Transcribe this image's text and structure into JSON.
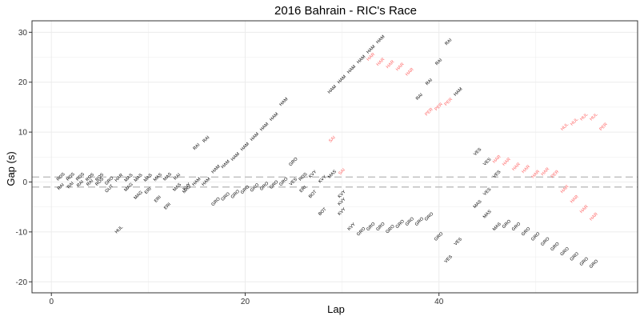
{
  "chart_data": {
    "type": "scatter",
    "title": "2016 Bahrain - RIC's Race",
    "xlabel": "Lap",
    "ylabel": "Gap (s)",
    "xlim": [
      -2,
      60.5
    ],
    "ylim": [
      -22.2,
      32.3
    ],
    "x_ticks": [
      0,
      20,
      40
    ],
    "y_ticks": [
      -20,
      -10,
      0,
      10,
      20,
      30
    ],
    "grid": true,
    "reference_lines": [
      1,
      -1
    ],
    "colors": {
      "default_label": "#000000",
      "highlight_label": "#ff6464",
      "grid": "#ececec",
      "reference_line": "#bfbfbf",
      "panel_border": "#333333"
    },
    "points": [
      {
        "x": 1,
        "y": 1.0,
        "label": "ROS"
      },
      {
        "x": 1,
        "y": -1.0,
        "label": "RAI"
      },
      {
        "x": 2,
        "y": 1.0,
        "label": "ROS"
      },
      {
        "x": 2,
        "y": -0.7,
        "label": "RAI"
      },
      {
        "x": 3,
        "y": 1.0,
        "label": "ROS"
      },
      {
        "x": 3,
        "y": -0.4,
        "label": "RAI"
      },
      {
        "x": 4,
        "y": 0.9,
        "label": "ROS"
      },
      {
        "x": 4,
        "y": -0.2,
        "label": "RAI"
      },
      {
        "x": 5,
        "y": 0.9,
        "label": "ROS"
      },
      {
        "x": 5,
        "y": 0.0,
        "label": "ROS"
      },
      {
        "x": 6,
        "y": 0.2,
        "label": "GRO"
      },
      {
        "x": 6,
        "y": -1.4,
        "label": "GUT"
      },
      {
        "x": 7,
        "y": 0.8,
        "label": "HAR"
      },
      {
        "x": 7,
        "y": -9.6,
        "label": "HUL"
      },
      {
        "x": 8,
        "y": 0.8,
        "label": "MAS"
      },
      {
        "x": 8,
        "y": -1.1,
        "label": "MAG"
      },
      {
        "x": 9,
        "y": 0.8,
        "label": "MAS"
      },
      {
        "x": 9,
        "y": -2.7,
        "label": "MAG"
      },
      {
        "x": 10,
        "y": 0.8,
        "label": "MAS"
      },
      {
        "x": 10,
        "y": -1.8,
        "label": "ERI"
      },
      {
        "x": 11,
        "y": 0.9,
        "label": "MAS"
      },
      {
        "x": 11,
        "y": -3.5,
        "label": "ERI"
      },
      {
        "x": 12,
        "y": 1.0,
        "label": "MAS"
      },
      {
        "x": 12,
        "y": -4.9,
        "label": "ERI"
      },
      {
        "x": 13,
        "y": 1.0,
        "label": "RAI"
      },
      {
        "x": 13,
        "y": -1.1,
        "label": "MAS"
      },
      {
        "x": 14,
        "y": -1.0,
        "label": "KVY"
      },
      {
        "x": 14,
        "y": -1.5,
        "label": "MAS"
      },
      {
        "x": 15,
        "y": 7.0,
        "label": "RAI"
      },
      {
        "x": 15,
        "y": 0.0,
        "label": "HAM"
      },
      {
        "x": 16,
        "y": 8.5,
        "label": "RAI"
      },
      {
        "x": 16,
        "y": 0.0,
        "label": "HAM"
      },
      {
        "x": 17,
        "y": 2.5,
        "label": "HAM"
      },
      {
        "x": 17,
        "y": -4.0,
        "label": "GRO"
      },
      {
        "x": 18,
        "y": 3.5,
        "label": "HAM"
      },
      {
        "x": 18,
        "y": -3.0,
        "label": "GRO"
      },
      {
        "x": 19,
        "y": 5.0,
        "label": "HAM"
      },
      {
        "x": 19,
        "y": -2.5,
        "label": "GRO"
      },
      {
        "x": 20,
        "y": 7.0,
        "label": "HAM"
      },
      {
        "x": 20,
        "y": -1.6,
        "label": "GRO"
      },
      {
        "x": 21,
        "y": 9.0,
        "label": "HAM"
      },
      {
        "x": 21,
        "y": -1.2,
        "label": "GRO"
      },
      {
        "x": 22,
        "y": 11.0,
        "label": "HAM"
      },
      {
        "x": 22,
        "y": -0.9,
        "label": "GRO"
      },
      {
        "x": 23,
        "y": 13.0,
        "label": "HAM"
      },
      {
        "x": 23,
        "y": -0.6,
        "label": "GRO"
      },
      {
        "x": 24,
        "y": 16.0,
        "label": "HAM"
      },
      {
        "x": 24,
        "y": 0.0,
        "label": "GRO"
      },
      {
        "x": 25,
        "y": 4.0,
        "label": "GRO"
      },
      {
        "x": 25,
        "y": 0.0,
        "label": "VES"
      },
      {
        "x": 26,
        "y": 1.0,
        "label": "ROS"
      },
      {
        "x": 26,
        "y": -1.5,
        "label": "ERI"
      },
      {
        "x": 27,
        "y": 1.5,
        "label": "KVY"
      },
      {
        "x": 27,
        "y": -2.5,
        "label": "BOT"
      },
      {
        "x": 28,
        "y": 0.5,
        "label": "KVY"
      },
      {
        "x": 28,
        "y": -6.0,
        "label": "BOT"
      },
      {
        "x": 29,
        "y": 1.5,
        "label": "MAS"
      },
      {
        "x": 29,
        "y": 18.5,
        "label": "HAM"
      },
      {
        "x": 29,
        "y": 8.5,
        "label": "SAI",
        "highlight": true
      },
      {
        "x": 30,
        "y": 20.5,
        "label": "HAM"
      },
      {
        "x": 30,
        "y": 2.0,
        "label": "SAI",
        "highlight": true
      },
      {
        "x": 30,
        "y": -2.5,
        "label": "KVY"
      },
      {
        "x": 30,
        "y": -4.0,
        "label": "KVY"
      },
      {
        "x": 30,
        "y": -6.0,
        "label": "KVY"
      },
      {
        "x": 31,
        "y": 22.5,
        "label": "HAM"
      },
      {
        "x": 31,
        "y": -9.0,
        "label": "KVY"
      },
      {
        "x": 32,
        "y": 24.5,
        "label": "HAM"
      },
      {
        "x": 32,
        "y": -10.0,
        "label": "GRO"
      },
      {
        "x": 33,
        "y": 26.5,
        "label": "HAM"
      },
      {
        "x": 33,
        "y": 25.0,
        "label": "HAR",
        "highlight": true
      },
      {
        "x": 33,
        "y": -9.0,
        "label": "GRO"
      },
      {
        "x": 34,
        "y": 28.5,
        "label": "HAM"
      },
      {
        "x": 34,
        "y": 24.0,
        "label": "HAR",
        "highlight": true
      },
      {
        "x": 34,
        "y": -9.0,
        "label": "GRO"
      },
      {
        "x": 35,
        "y": 23.5,
        "label": "HAR",
        "highlight": true
      },
      {
        "x": 35,
        "y": -9.5,
        "label": "GRO"
      },
      {
        "x": 36,
        "y": 23.0,
        "label": "HAR",
        "highlight": true
      },
      {
        "x": 36,
        "y": -8.5,
        "label": "GRO"
      },
      {
        "x": 37,
        "y": 22.0,
        "label": "HAR",
        "highlight": true
      },
      {
        "x": 37,
        "y": -8.0,
        "label": "GRO"
      },
      {
        "x": 38,
        "y": 17.0,
        "label": "RAI"
      },
      {
        "x": 38,
        "y": -8.0,
        "label": "GRO"
      },
      {
        "x": 39,
        "y": 20.0,
        "label": "RAI"
      },
      {
        "x": 39,
        "y": 14.0,
        "label": "PER",
        "highlight": true
      },
      {
        "x": 39,
        "y": -7.0,
        "label": "GRO"
      },
      {
        "x": 40,
        "y": 24.0,
        "label": "RAI"
      },
      {
        "x": 40,
        "y": 15.0,
        "label": "PER",
        "highlight": true
      },
      {
        "x": 40,
        "y": -11.0,
        "label": "GRO"
      },
      {
        "x": 41,
        "y": 28.0,
        "label": "RAI"
      },
      {
        "x": 41,
        "y": 16.0,
        "label": "PER",
        "highlight": true
      },
      {
        "x": 41,
        "y": -15.5,
        "label": "VES"
      },
      {
        "x": 42,
        "y": 18.0,
        "label": "HAM"
      },
      {
        "x": 42,
        "y": -12.0,
        "label": "VES"
      },
      {
        "x": 44,
        "y": 6.0,
        "label": "VES"
      },
      {
        "x": 44,
        "y": -4.5,
        "label": "MAS"
      },
      {
        "x": 45,
        "y": 4.0,
        "label": "VES"
      },
      {
        "x": 45,
        "y": -2.0,
        "label": "VES"
      },
      {
        "x": 45,
        "y": -6.5,
        "label": "MAS"
      },
      {
        "x": 46,
        "y": 1.5,
        "label": "VES"
      },
      {
        "x": 46,
        "y": 4.5,
        "label": "HAR",
        "highlight": true
      },
      {
        "x": 46,
        "y": -9.0,
        "label": "MAS"
      },
      {
        "x": 47,
        "y": 4.0,
        "label": "HAR",
        "highlight": true
      },
      {
        "x": 47,
        "y": -8.5,
        "label": "GRO"
      },
      {
        "x": 48,
        "y": 3.0,
        "label": "HAR",
        "highlight": true
      },
      {
        "x": 48,
        "y": -9.0,
        "label": "GRO"
      },
      {
        "x": 49,
        "y": 2.5,
        "label": "HAR",
        "highlight": true
      },
      {
        "x": 49,
        "y": -10.0,
        "label": "GRO"
      },
      {
        "x": 50,
        "y": 1.5,
        "label": "HAR",
        "highlight": true
      },
      {
        "x": 50,
        "y": -11.0,
        "label": "GRO"
      },
      {
        "x": 51,
        "y": 2.0,
        "label": "HAR",
        "highlight": true
      },
      {
        "x": 51,
        "y": -12.0,
        "label": "GRO"
      },
      {
        "x": 52,
        "y": 1.5,
        "label": "PER",
        "highlight": true
      },
      {
        "x": 52,
        "y": -13.0,
        "label": "GRO"
      },
      {
        "x": 53,
        "y": -1.5,
        "label": "HAR",
        "highlight": true
      },
      {
        "x": 53,
        "y": 11.0,
        "label": "HUL",
        "highlight": true
      },
      {
        "x": 53,
        "y": -14.0,
        "label": "GRO"
      },
      {
        "x": 54,
        "y": -3.5,
        "label": "HAR",
        "highlight": true
      },
      {
        "x": 54,
        "y": 12.0,
        "label": "HUL",
        "highlight": true
      },
      {
        "x": 54,
        "y": -15.0,
        "label": "GRO"
      },
      {
        "x": 55,
        "y": -5.5,
        "label": "HAR",
        "highlight": true
      },
      {
        "x": 55,
        "y": 13.0,
        "label": "HUL",
        "highlight": true
      },
      {
        "x": 55,
        "y": -16.0,
        "label": "GRO"
      },
      {
        "x": 56,
        "y": -7.0,
        "label": "HAR",
        "highlight": true
      },
      {
        "x": 56,
        "y": 13.0,
        "label": "HUL",
        "highlight": true
      },
      {
        "x": 56,
        "y": -16.5,
        "label": "GRO"
      },
      {
        "x": 57,
        "y": 11.0,
        "label": "PER",
        "highlight": true
      }
    ]
  }
}
